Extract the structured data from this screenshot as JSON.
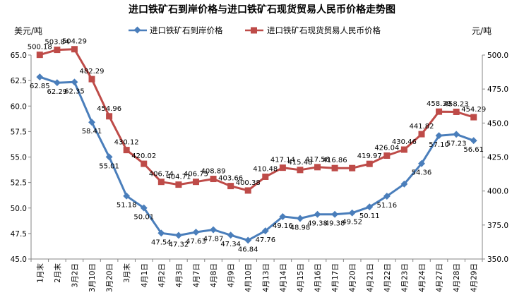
{
  "chart_data": {
    "type": "line",
    "title": "进口铁矿石到岸价格与进口铁矿石现货贸易人民币价格走势图",
    "left_axis_unit": "美元/吨",
    "right_axis_unit": "元/吨",
    "categories": [
      "1月末",
      "2月末",
      "3月2日",
      "3月10日",
      "3月20日",
      "3月末",
      "4月1日",
      "4月2日",
      "4月3日",
      "4月7日",
      "4月8日",
      "4月9日",
      "4月10日",
      "4月13日",
      "4月14日",
      "4月15日",
      "4月16日",
      "4月17日",
      "4月20日",
      "4月21日",
      "4月22日",
      "4月23日",
      "4月24日",
      "4月27日",
      "4月28日",
      "4月29日"
    ],
    "y_left": {
      "min": 45.0,
      "max": 65.0,
      "step": 2.5,
      "ticks": [
        "45.0",
        "47.5",
        "50.0",
        "52.5",
        "55.0",
        "57.5",
        "60.0",
        "62.5",
        "65.0"
      ]
    },
    "y_right": {
      "min": 350.0,
      "max": 500.0,
      "step": 25,
      "ticks": [
        "350.0",
        "375.0",
        "400.0",
        "425.0",
        "450.0",
        "475.0",
        "500.0"
      ]
    },
    "series": [
      {
        "name": "进口铁矿石到岸价格",
        "axis": "left",
        "color": "#4A7EBB",
        "marker": "diamond",
        "values": [
          62.85,
          62.29,
          62.35,
          58.41,
          55.01,
          51.18,
          50.01,
          47.54,
          47.32,
          47.63,
          47.87,
          47.34,
          46.84,
          47.76,
          49.16,
          48.98,
          49.38,
          49.38,
          49.52,
          50.11,
          51.16,
          52.35,
          54.36,
          57.1,
          57.23,
          56.61
        ],
        "labels": [
          "62.85",
          "62.29",
          "62.35",
          "58.41",
          "55.01",
          "51.18",
          "50.01",
          "47.54",
          "47.32",
          "47.63",
          "47.87",
          "47.34",
          "46.84",
          "47.76",
          "49.16",
          "48.98",
          "49.38",
          "49.38",
          "49.52",
          "50.11",
          "51.16",
          "",
          "54.36",
          "57.10",
          "57.23",
          "56.61"
        ]
      },
      {
        "name": "进口铁矿石现货贸易人民币价格",
        "axis": "right",
        "color": "#BE4B48",
        "marker": "square",
        "values": [
          500.18,
          503.84,
          504.29,
          482.29,
          454.96,
          430.12,
          420.02,
          406.74,
          404.71,
          406.75,
          408.89,
          403.66,
          400.38,
          410.48,
          417.14,
          415.48,
          417.56,
          416.86,
          416.86,
          419.97,
          426.04,
          430.46,
          441.82,
          458.39,
          458.23,
          454.29
        ],
        "labels": [
          "500.18",
          "503.84",
          "504.29",
          "482.29",
          "454.96",
          "430.12",
          "420.02",
          "406.74",
          "404.71",
          "406.75",
          "408.89",
          "403.66",
          "400.38",
          "410.48",
          "417.14",
          "415.48",
          "417.56",
          "416.86",
          "",
          "419.97",
          "426.04",
          "430.46",
          "441.82",
          "458.39",
          "458.23",
          "454.29"
        ]
      }
    ],
    "grid": false,
    "legend_position": "top-center"
  }
}
